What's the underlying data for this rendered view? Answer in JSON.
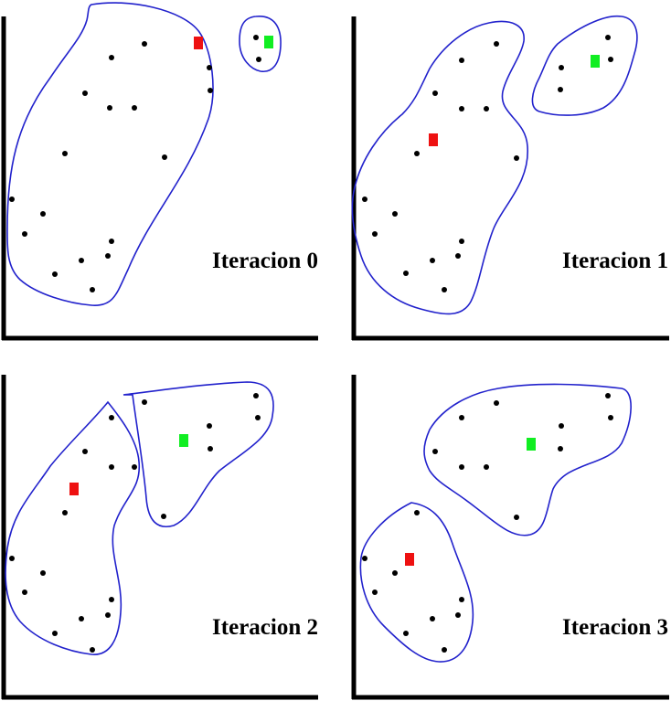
{
  "panels": [
    {
      "label": "Iteracion 0",
      "points": [
        [
          122,
          63
        ],
        [
          158,
          48
        ],
        [
          120,
          118
        ],
        [
          93,
          102
        ],
        [
          147,
          118
        ],
        [
          71,
          168
        ],
        [
          180,
          172
        ],
        [
          13,
          218
        ],
        [
          47,
          234
        ],
        [
          27,
          256
        ],
        [
          122,
          264
        ],
        [
          89,
          285
        ],
        [
          118,
          280
        ],
        [
          60,
          300
        ],
        [
          101,
          317
        ],
        [
          229,
          74
        ],
        [
          230,
          99
        ],
        [
          280,
          41
        ],
        [
          283,
          65
        ]
      ],
      "centroids": [
        {
          "color": "#ee1111",
          "pos": [
            217,
            47
          ]
        },
        {
          "color": "#11ee22",
          "pos": [
            294,
            46
          ]
        }
      ],
      "clusters": [
        "M100,5 C140,-2 200,10 218,35 C232,55 238,100 228,130 C205,195 165,235 140,295 C128,320 125,336 100,334 C75,332 40,322 22,306 C7,292 8,270 8,250 C8,185 18,135 55,85 C75,55 90,40 95,22 C97,14 96,7 100,5 Z",
        "M280,18 C300,16 308,30 307,50 C306,70 298,80 285,78 C275,76 262,65 262,45 C262,28 267,19 280,18 Z"
      ]
    },
    {
      "label": "Iteracion 1",
      "points": [
        [
          505,
          66
        ],
        [
          543,
          48
        ],
        [
          505,
          119
        ],
        [
          476,
          102
        ],
        [
          532,
          119
        ],
        [
          456,
          168
        ],
        [
          565,
          173
        ],
        [
          399,
          218
        ],
        [
          432,
          234
        ],
        [
          410,
          256
        ],
        [
          505,
          264
        ],
        [
          473,
          285
        ],
        [
          501,
          280
        ],
        [
          444,
          299
        ],
        [
          486,
          317
        ],
        [
          614,
          74
        ],
        [
          613,
          98
        ],
        [
          665,
          41
        ],
        [
          668,
          65
        ]
      ],
      "centroids": [
        {
          "color": "#ee1111",
          "pos": [
            474,
            153
          ]
        },
        {
          "color": "#11ee22",
          "pos": [
            651,
            67
          ]
        }
      ],
      "clusters": [
        "M470,75 C485,50 510,30 535,25 C560,20 575,28 573,45 C570,62 555,80 550,100 C545,125 575,130 577,160 C580,200 550,225 540,250 C528,280 525,310 515,330 C505,348 485,345 460,338 C430,330 405,310 395,280 C385,250 383,225 388,205 C395,175 415,145 440,125 C455,110 460,95 470,75 Z",
        "M610,48 C630,32 660,15 680,18 C695,20 700,35 695,55 C688,80 682,105 660,118 C640,128 610,128 590,122 C578,118 582,100 590,85 C597,70 600,58 610,48 Z"
      ]
    },
    {
      "label": "Iteracion 2",
      "points": [
        [
          122,
          457
        ],
        [
          93,
          494
        ],
        [
          122,
          511
        ],
        [
          147,
          511
        ],
        [
          71,
          561
        ],
        [
          13,
          611
        ],
        [
          47,
          627
        ],
        [
          27,
          648
        ],
        [
          122,
          656
        ],
        [
          89,
          677
        ],
        [
          118,
          673
        ],
        [
          60,
          693
        ],
        [
          101,
          711
        ],
        [
          158,
          440
        ],
        [
          280,
          433
        ],
        [
          282,
          457
        ],
        [
          229,
          466
        ],
        [
          230,
          491
        ],
        [
          179,
          565
        ]
      ],
      "centroids": [
        {
          "color": "#ee1111",
          "pos": [
            81,
            535
          ]
        },
        {
          "color": "#11ee22",
          "pos": [
            201,
            482
          ]
        }
      ],
      "clusters": [
        "M118,440 C130,455 150,480 152,505 C155,535 135,545 125,575 C118,605 135,635 132,670 C130,700 120,718 100,716 C75,713 42,702 22,680 C5,660 4,630 8,600 C14,560 35,540 55,510 C75,485 100,462 118,440 Z",
        "M135,432 C170,428 220,420 270,418 C295,418 302,432 298,455 C295,480 265,495 240,515 C220,535 212,565 190,575 C172,580 162,570 160,545 C157,510 150,470 145,432 Z"
      ]
    },
    {
      "label": "Iteracion 3",
      "points": [
        [
          505,
          457
        ],
        [
          543,
          441
        ],
        [
          476,
          494
        ],
        [
          505,
          511
        ],
        [
          532,
          511
        ],
        [
          565,
          566
        ],
        [
          614,
          466
        ],
        [
          613,
          491
        ],
        [
          665,
          433
        ],
        [
          668,
          457
        ],
        [
          456,
          561
        ],
        [
          399,
          611
        ],
        [
          432,
          627
        ],
        [
          410,
          648
        ],
        [
          505,
          656
        ],
        [
          473,
          677
        ],
        [
          501,
          673
        ],
        [
          444,
          693
        ],
        [
          486,
          711
        ]
      ],
      "centroids": [
        {
          "color": "#ee1111",
          "pos": [
            448,
            612
          ]
        },
        {
          "color": "#11ee22",
          "pos": [
            581,
            486
          ]
        }
      ],
      "clusters": [
        "M470,470 C485,445 515,430 545,425 C585,418 640,420 680,425 C695,428 692,460 680,485 C665,510 620,505 605,535 C598,555 598,580 580,585 C560,590 540,570 520,555 C495,535 480,530 470,515 C462,500 462,488 470,470 Z",
        "M450,550 C470,553 485,565 495,595 C505,625 520,650 517,680 C514,710 500,725 480,724 C460,723 440,705 420,685 C400,665 392,635 395,610 C398,590 420,565 450,550 Z"
      ]
    }
  ]
}
